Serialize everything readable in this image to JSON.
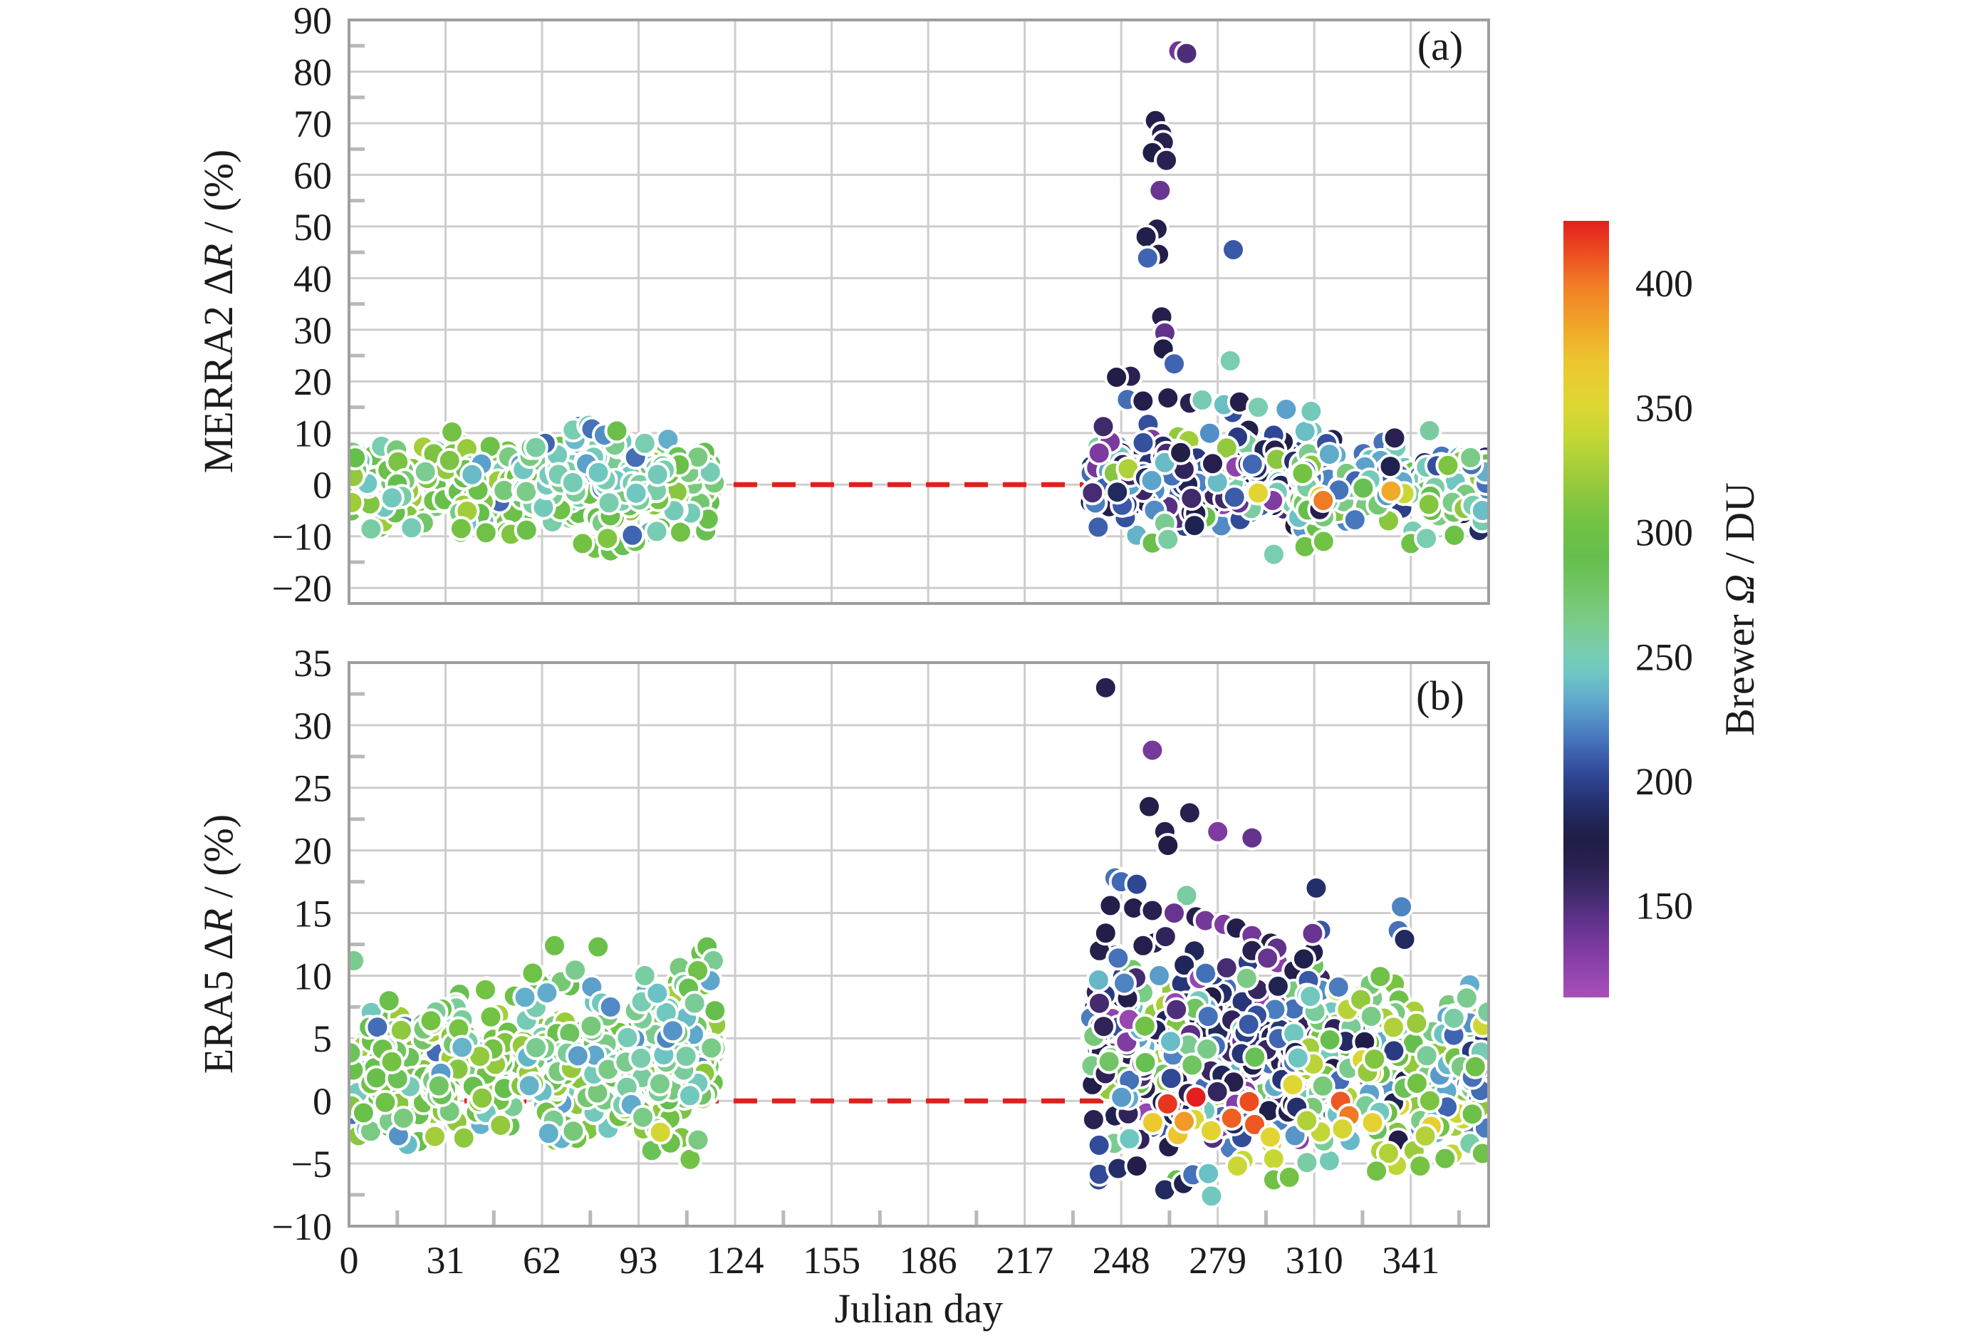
{
  "figure": {
    "background": "#ffffff"
  },
  "style": {
    "grid_color": "#cdcdcd",
    "border_color": "#9e9e9e",
    "minor_tick_color": "#b9b9b9",
    "zero_line_color": "#e0201e",
    "marker_stroke": "#ffffff",
    "marker_stroke_width": 4,
    "marker_radius": 15.5,
    "text_color": "#1b1b1b"
  },
  "chart_data": {
    "type": "scatter",
    "xlabel": "Julian day",
    "xlim": [
      0,
      366
    ],
    "x_ticks": [
      0,
      31,
      62,
      93,
      124,
      155,
      186,
      217,
      248,
      279,
      310,
      341
    ],
    "x_minor_offset": 15.5,
    "seed": 13,
    "colorbar": {
      "label_prefix": "Brewer ",
      "label_italic": "Ω",
      "label_suffix": " / DU",
      "min": 113,
      "max": 425,
      "ticks": [
        150,
        200,
        250,
        300,
        350,
        400
      ]
    },
    "colormap": [
      [
        113,
        "#a94fb8"
      ],
      [
        122,
        "#9546b0"
      ],
      [
        133,
        "#7c3a9f"
      ],
      [
        145,
        "#5c3188"
      ],
      [
        155,
        "#3f2a6b"
      ],
      [
        166,
        "#2a2152"
      ],
      [
        175,
        "#201d46"
      ],
      [
        183,
        "#1f2454"
      ],
      [
        192,
        "#253272"
      ],
      [
        202,
        "#2f4693"
      ],
      [
        212,
        "#3f64b2"
      ],
      [
        222,
        "#4f87c4"
      ],
      [
        232,
        "#5fa8cd"
      ],
      [
        243,
        "#6ec6c3"
      ],
      [
        252,
        "#79cdb0"
      ],
      [
        265,
        "#7bcb87"
      ],
      [
        278,
        "#72c565"
      ],
      [
        290,
        "#65bf4d"
      ],
      [
        305,
        "#74c244"
      ],
      [
        322,
        "#9ccb3b"
      ],
      [
        338,
        "#c3d735"
      ],
      [
        352,
        "#e0d633"
      ],
      [
        368,
        "#ecc72f"
      ],
      [
        383,
        "#f0a629"
      ],
      [
        398,
        "#f18126"
      ],
      [
        412,
        "#ec4e20"
      ],
      [
        425,
        "#e31f1f"
      ]
    ],
    "panels": [
      {
        "id": "a",
        "label": "(a)",
        "ylabel_prefix": "MERRA2 Δ",
        "ylabel_italic": "R",
        "ylabel_suffix": " / (%)",
        "ylim": [
          -23,
          90
        ],
        "ytick_min": -20,
        "ytick_max": 90,
        "ytick_step": 10,
        "yminor_step": 5,
        "zero_line": 0,
        "clusters": [
          {
            "n": 500,
            "days": [
              0,
              118
            ],
            "v": [
              0,
              3.5,
              -9.2,
              10.2
            ],
            "omega": [
              [
                0.6,
                288,
                326
              ],
              [
                0.2,
                266,
                290
              ],
              [
                0.13,
                246,
                272
              ],
              [
                0.06,
                226,
                252
              ],
              [
                0.01,
                212,
                226
              ]
            ]
          },
          {
            "n": 70,
            "days": [
              55,
              102
            ],
            "v": [
              2,
              3.2,
              -6,
              11.2
            ],
            "omega": [
              [
                0.55,
                244,
                268
              ],
              [
                0.3,
                224,
                250
              ],
              [
                0.15,
                252,
                275
              ]
            ]
          },
          {
            "n": 345,
            "days": [
              238,
              314
            ],
            "v": [
              1.5,
              4.3,
              -10.3,
              16.6
            ],
            "omega": [
              [
                0.33,
                150,
                186
              ],
              [
                0.22,
                186,
                216
              ],
              [
                0.16,
                214,
                242
              ],
              [
                0.09,
                120,
                156
              ],
              [
                0.1,
                240,
                268
              ],
              [
                0.1,
                278,
                330
              ]
            ]
          },
          {
            "n": 215,
            "days": [
              305,
              366
            ],
            "v": [
              0.6,
              3.7,
              -9,
              13.5
            ],
            "omega": [
              [
                0.28,
                240,
                272
              ],
              [
                0.3,
                278,
                322
              ],
              [
                0.18,
                202,
                238
              ],
              [
                0.12,
                160,
                198
              ],
              [
                0.12,
                214,
                252
              ]
            ]
          },
          {
            "n": 5,
            "days": [
              286,
              340
            ],
            "v": [
              -2,
              1.4,
              -4.6,
              0.4
            ],
            "omega": [
              [
                0.55,
                345,
                415
              ],
              [
                0.45,
                326,
                352
              ]
            ]
          }
        ],
        "points": [
          [
            266.5,
            84,
            138
          ],
          [
            269,
            83.5,
            150
          ],
          [
            259,
            70.5,
            172
          ],
          [
            261,
            68,
            170
          ],
          [
            261.5,
            66.3,
            168
          ],
          [
            258,
            64.3,
            175
          ],
          [
            262.5,
            62.8,
            166
          ],
          [
            260.5,
            57,
            140
          ],
          [
            259.5,
            49.5,
            172
          ],
          [
            256,
            48,
            178
          ],
          [
            284,
            45.5,
            208
          ],
          [
            260,
            44.6,
            172
          ],
          [
            256.5,
            43.9,
            212
          ],
          [
            261,
            32.5,
            170
          ],
          [
            262,
            29.4,
            143
          ],
          [
            261.5,
            26.3,
            176
          ],
          [
            265,
            23.4,
            212
          ],
          [
            283,
            24,
            252
          ],
          [
            251,
            21,
            166
          ],
          [
            246.5,
            20.8,
            174
          ],
          [
            250,
            16.5,
            215
          ],
          [
            255,
            16.2,
            172
          ],
          [
            263,
            16.8,
            170
          ],
          [
            270,
            15.8,
            168
          ],
          [
            274,
            16.4,
            250
          ],
          [
            281,
            15.5,
            240
          ],
          [
            286,
            16,
            172
          ],
          [
            292,
            15,
            252
          ],
          [
            301,
            14.6,
            230
          ],
          [
            309,
            14.2,
            248
          ],
          [
            297,
            -13.5,
            252
          ],
          [
            307,
            -12,
            300
          ],
          [
            258,
            -11.3,
            295
          ],
          [
            263,
            -10.6,
            256
          ],
          [
            313,
            -11,
            303
          ],
          [
            341,
            -11.4,
            300
          ],
          [
            346,
            -10.4,
            252
          ],
          [
            355,
            -9.8,
            298
          ],
          [
            361,
            -4,
            252
          ],
          [
            364,
            -5,
            240
          ],
          [
            44,
            -9.3,
            300
          ],
          [
            52,
            -9.6,
            310
          ],
          [
            57,
            -8.8,
            296
          ],
          [
            36,
            -8.5,
            305
          ],
          [
            79,
            -12.3,
            300
          ],
          [
            84,
            -12.8,
            296
          ],
          [
            88,
            -11.8,
            288
          ],
          [
            92,
            -11,
            300
          ],
          [
            75,
            -11.4,
            305
          ],
          [
            83,
            -10.4,
            310
          ],
          [
            63,
            8,
            212
          ],
          [
            74,
            11.3,
            218
          ],
          [
            72,
            10.6,
            252
          ],
          [
            77,
            11.5,
            248
          ],
          [
            92,
            5.3,
            215
          ],
          [
            91,
            -9.8,
            212
          ],
          [
            78,
            10.8,
            216
          ],
          [
            82,
            9.6,
            224
          ],
          [
            86,
            10.4,
            295
          ],
          [
            95,
            8,
            252
          ],
          [
            60,
            7.2,
            256
          ],
          [
            1,
            6.3,
            266
          ],
          [
            2,
            5.2,
            290
          ]
        ]
      },
      {
        "id": "b",
        "label": "(b)",
        "ylabel_prefix": "ERA5 Δ",
        "ylabel_italic": "R",
        "ylabel_suffix": " / (%)",
        "ylim": [
          -10,
          35
        ],
        "ytick_min": -10,
        "ytick_max": 35,
        "ytick_step": 5,
        "yminor_step": 2.5,
        "zero_line": 0,
        "clusters": [
          {
            "n": 500,
            "days": [
              0,
              118
            ],
            "v": [
              2.3,
              2.6,
              -6,
              12
            ],
            "omega": [
              [
                0.6,
                288,
                326
              ],
              [
                0.2,
                266,
                290
              ],
              [
                0.13,
                246,
                272
              ],
              [
                0.06,
                226,
                252
              ],
              [
                0.01,
                212,
                226
              ]
            ]
          },
          {
            "n": 60,
            "days": [
              55,
              110
            ],
            "v": [
              4,
              3,
              -3,
              11
            ],
            "omega": [
              [
                0.55,
                244,
                268
              ],
              [
                0.3,
                224,
                250
              ],
              [
                0.15,
                252,
                275
              ]
            ]
          },
          {
            "n": 385,
            "days": [
              238,
              314
            ],
            "v": [
              4.6,
              3.8,
              -6.3,
              17
            ],
            "omega": [
              [
                0.35,
                150,
                186
              ],
              [
                0.17,
                120,
                156
              ],
              [
                0.2,
                186,
                218
              ],
              [
                0.14,
                214,
                246
              ],
              [
                0.08,
                246,
                290
              ],
              [
                0.06,
                288,
                330
              ]
            ]
          },
          {
            "n": 255,
            "days": [
              303,
              366
            ],
            "v": [
              2.6,
              3.2,
              -5.8,
              11.5
            ],
            "omega": [
              [
                0.26,
                240,
                274
              ],
              [
                0.3,
                278,
                324
              ],
              [
                0.2,
                202,
                240
              ],
              [
                0.12,
                318,
                362
              ],
              [
                0.12,
                162,
                202
              ]
            ]
          },
          {
            "n": 14,
            "days": [
              256,
              324
            ],
            "v": [
              -0.6,
              1.5,
              -4.2,
              1.8
            ],
            "omega": [
              [
                0.65,
                372,
                425
              ],
              [
                0.35,
                345,
                375
              ]
            ]
          },
          {
            "n": 12,
            "days": [
              283,
              350
            ],
            "v": [
              -2.8,
              1.3,
              -5.2,
              -0.4
            ],
            "omega": [
              [
                1,
                322,
                360
              ]
            ]
          }
        ],
        "points": [
          [
            243,
            33,
            168
          ],
          [
            258,
            28,
            135
          ],
          [
            257,
            23.5,
            172
          ],
          [
            270,
            23,
            168
          ],
          [
            262,
            21.5,
            170
          ],
          [
            279,
            21.5,
            132
          ],
          [
            290,
            21,
            142
          ],
          [
            263,
            20.4,
            174
          ],
          [
            246,
            17.8,
            216
          ],
          [
            248,
            17.5,
            213
          ],
          [
            253,
            17.3,
            202
          ],
          [
            269,
            16.4,
            256
          ],
          [
            244.5,
            15.6,
            172
          ],
          [
            252,
            15.4,
            170
          ],
          [
            258,
            15.2,
            168
          ],
          [
            265,
            15,
            141
          ],
          [
            272,
            14.7,
            169
          ],
          [
            275,
            14.4,
            136
          ],
          [
            281,
            14.1,
            131
          ],
          [
            285,
            13.8,
            172
          ],
          [
            290,
            13.2,
            136
          ],
          [
            296,
            12.6,
            170
          ],
          [
            298,
            12.2,
            143
          ],
          [
            338,
            15.5,
            221
          ],
          [
            337,
            13.6,
            216
          ],
          [
            339,
            12.9,
            186
          ],
          [
            241,
            12,
            171
          ],
          [
            243,
            13.4,
            173
          ],
          [
            247,
            11.4,
            216
          ],
          [
            249,
            9.4,
            221
          ],
          [
            255,
            12.4,
            171
          ],
          [
            290,
            12,
            168
          ],
          [
            295,
            11.4,
            141
          ],
          [
            277,
            -7.6,
            246
          ],
          [
            262,
            -7.1,
            186
          ],
          [
            268,
            -6.6,
            181
          ],
          [
            271,
            -5.9,
            216
          ],
          [
            276,
            -5.8,
            241
          ],
          [
            297,
            -6.3,
            300
          ],
          [
            302,
            -6.1,
            305
          ],
          [
            247,
            -5.4,
            189
          ],
          [
            253,
            -5.2,
            173
          ],
          [
            330,
            -5.6,
            302
          ],
          [
            344,
            -5.2,
            306
          ],
          [
            352,
            -4.6,
            300
          ],
          [
            360,
            -3.4,
            255
          ],
          [
            364,
            -4.2,
            300
          ],
          [
            272,
            0.3,
            430
          ],
          [
            1.5,
            11.2,
            262
          ],
          [
            59,
            10.2,
            300
          ],
          [
            66,
            12.4,
            298
          ],
          [
            80,
            12.3,
            295
          ],
          [
            84,
            7.5,
            223
          ],
          [
            102,
            5,
            221
          ],
          [
            104,
            5.6,
            226
          ],
          [
            99,
            8.6,
            241
          ],
          [
            113,
            11.8,
            296
          ],
          [
            115,
            12.3,
            291
          ],
          [
            117,
            11.2,
            261
          ],
          [
            116,
            9.6,
            231
          ],
          [
            112,
            10.4,
            300
          ],
          [
            95,
            10,
            256
          ],
          [
            100,
            -2.5,
            346
          ],
          [
            109,
            9,
            288
          ],
          [
            111,
            7.8,
            260
          ]
        ]
      }
    ]
  }
}
